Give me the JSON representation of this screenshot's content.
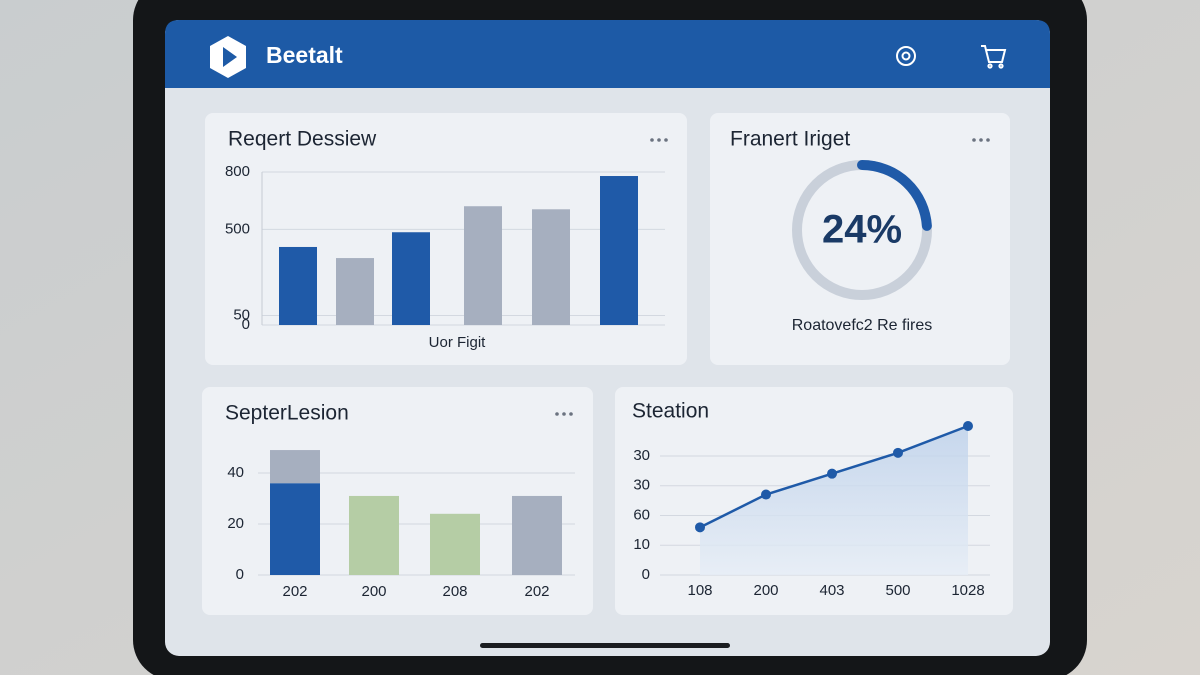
{
  "header": {
    "title": "Beetalt"
  },
  "cards": [
    {
      "title": "Reqert Dessiew",
      "chart": {
        "type": "bar",
        "xlabel": "Uor Figit",
        "values": [
          408,
          350,
          485,
          621,
          605,
          779
        ],
        "colors": [
          "#1f5aa8",
          "#a6afbf",
          "#1f5aa8",
          "#a6afbf",
          "#a6afbf",
          "#1f5aa8"
        ],
        "ylim": [
          0,
          800
        ],
        "yticks": [
          800,
          500,
          50,
          0
        ],
        "grid": true
      }
    },
    {
      "title": "Franert Iriget",
      "chart": {
        "type": "donut",
        "value": 24,
        "value_label": "24%",
        "label": "Roatovefc2 Re fires",
        "color": "#1f5aa8"
      }
    },
    {
      "title": "SepterLesion",
      "chart": {
        "type": "stacked_bar",
        "categories": [
          "202",
          "200",
          "208",
          "202"
        ],
        "series": [
          {
            "color": "#1f5aa8",
            "values": [
              36,
              null,
              null,
              null
            ]
          },
          {
            "color": "#b5cda5",
            "values": [
              null,
              31,
              24,
              null
            ]
          },
          {
            "color": "#a6afbf",
            "values": [
              13,
              null,
              null,
              31
            ]
          }
        ],
        "ylim": [
          0,
          50
        ],
        "yticks": [
          40,
          20,
          0
        ],
        "grid": true
      }
    },
    {
      "title": "Steation",
      "chart": {
        "type": "line",
        "categories": [
          "108",
          "200",
          "403",
          "500",
          "1028"
        ],
        "values": [
          16,
          27,
          34,
          41,
          50
        ],
        "color": "#1f5aa8",
        "ylim": [
          0,
          50
        ],
        "ylabels": [
          "30",
          "30",
          "60",
          "10",
          "0"
        ]
      }
    }
  ]
}
